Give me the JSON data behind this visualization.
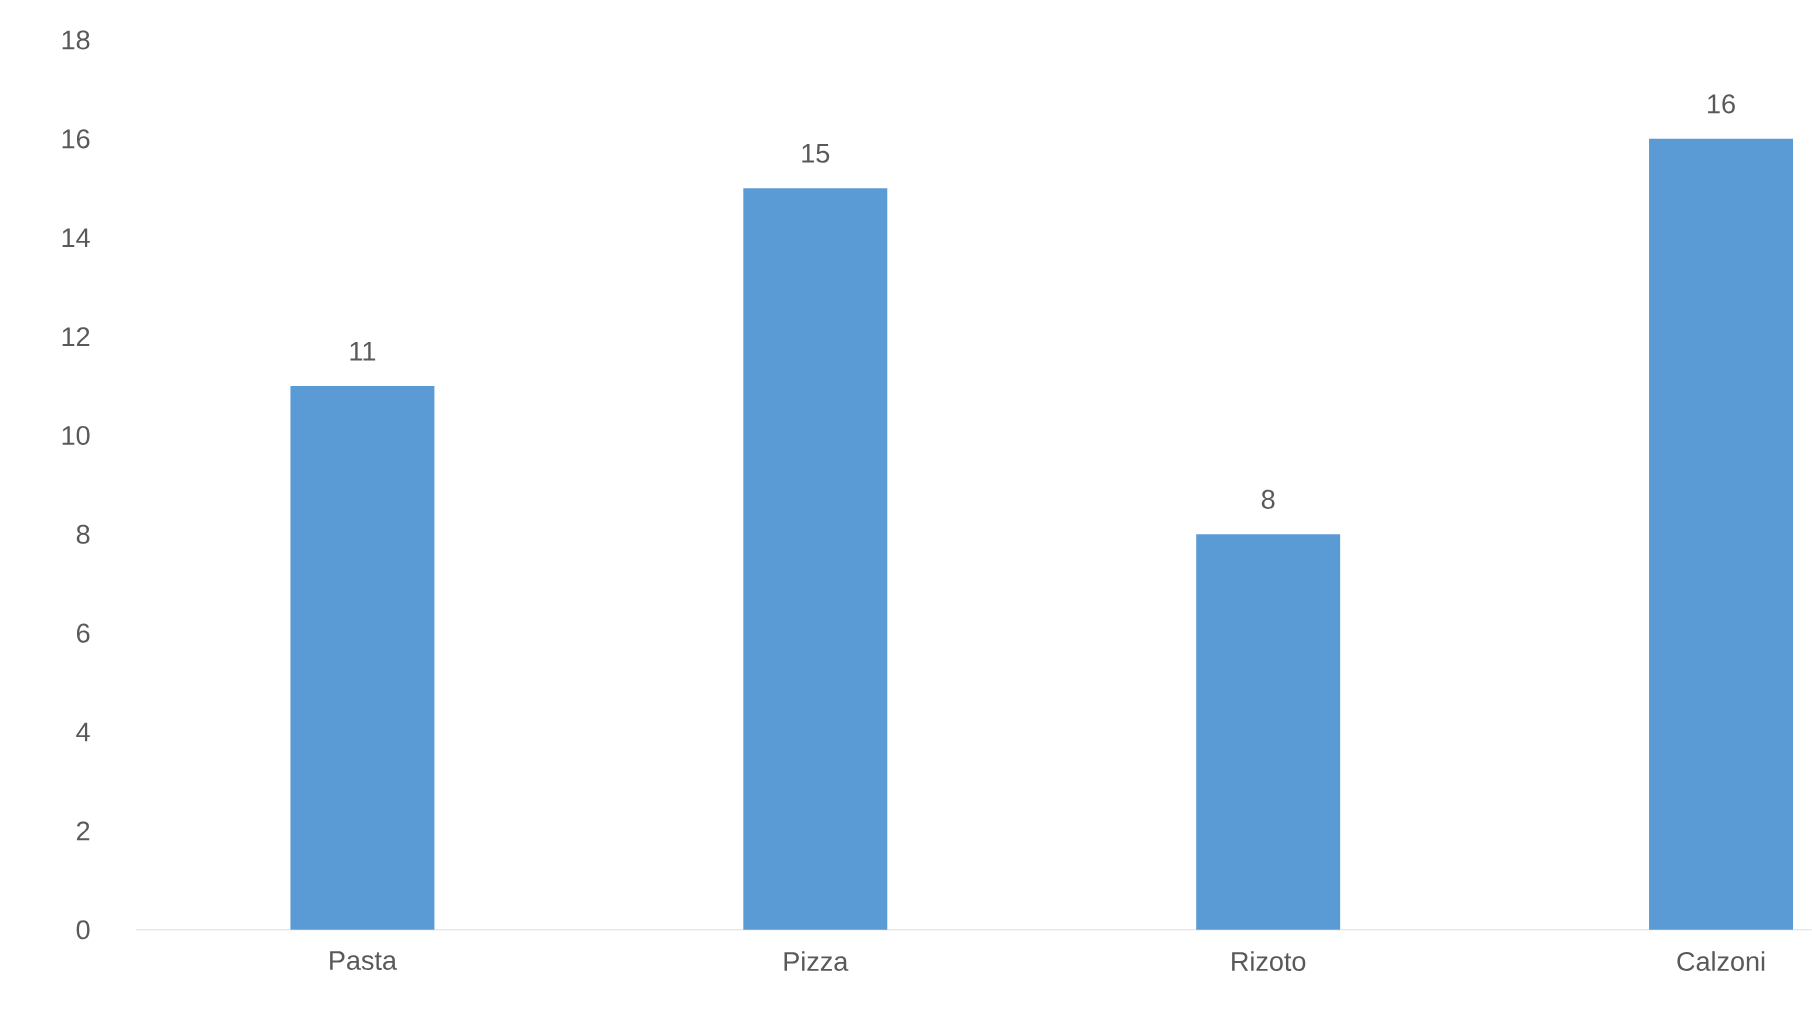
{
  "chart_data": {
    "type": "bar",
    "categories": [
      "Pasta",
      "Pizza",
      "Rizoto",
      "Calzoni"
    ],
    "values": [
      11,
      15,
      8,
      16
    ],
    "color": "#5b9bd5",
    "ylim": [
      0,
      18
    ],
    "yticks": [
      0,
      2,
      4,
      6,
      8,
      10,
      12,
      14,
      16,
      18
    ],
    "data_labels": true
  }
}
